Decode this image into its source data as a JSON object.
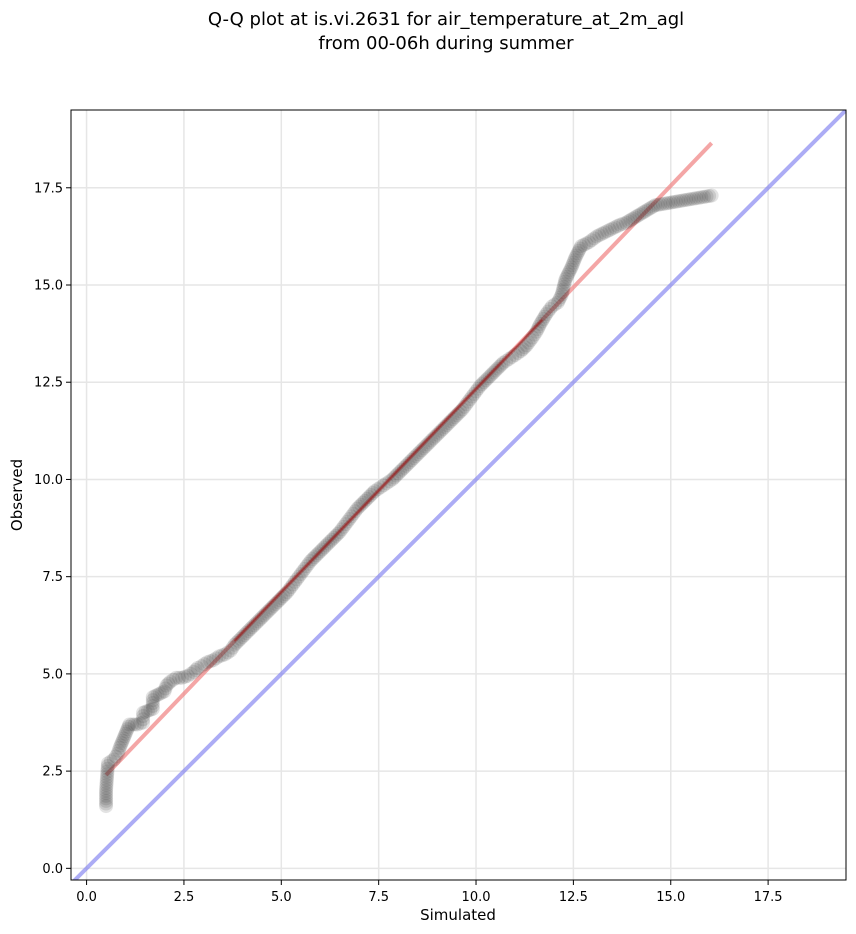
{
  "chart_data": {
    "type": "scatter",
    "title": "Q-Q plot at is.vi.2631 for air_temperature_at_2m_agl",
    "subtitle": "from 00-06h during summer",
    "xlabel": "Simulated",
    "ylabel": "Observed",
    "xlim": [
      -0.4,
      19.5
    ],
    "ylim": [
      -0.3,
      19.5
    ],
    "xticks": [
      "0.0",
      "2.5",
      "5.0",
      "7.5",
      "10.0",
      "12.5",
      "15.0",
      "17.5"
    ],
    "yticks": [
      "0.0",
      "2.5",
      "5.0",
      "7.5",
      "10.0",
      "12.5",
      "15.0",
      "17.5"
    ],
    "grid": true,
    "colors": {
      "points": "#2a2a2a",
      "fit_line": "#f08080",
      "identity_line": "#8080f0",
      "fit_core": "#a00000"
    },
    "series": [
      {
        "kind": "identity-line",
        "x": [
          -0.4,
          19.5
        ],
        "y": [
          -0.4,
          19.5
        ]
      },
      {
        "kind": "fit-line",
        "x": [
          0.5,
          16.05
        ],
        "y": [
          2.4,
          18.65
        ]
      },
      {
        "kind": "quantile-points",
        "points": [
          [
            0.5,
            1.6
          ],
          [
            0.5,
            2.0
          ],
          [
            0.55,
            2.7
          ],
          [
            0.7,
            2.8
          ],
          [
            0.8,
            2.95
          ],
          [
            0.85,
            3.1
          ],
          [
            1.1,
            3.7
          ],
          [
            1.3,
            3.7
          ],
          [
            1.45,
            3.75
          ],
          [
            1.45,
            4.0
          ],
          [
            1.7,
            4.1
          ],
          [
            1.7,
            4.4
          ],
          [
            2.0,
            4.55
          ],
          [
            2.05,
            4.7
          ],
          [
            2.15,
            4.8
          ],
          [
            2.3,
            4.9
          ],
          [
            2.45,
            4.9
          ],
          [
            2.6,
            4.95
          ],
          [
            2.75,
            5.05
          ],
          [
            2.85,
            5.15
          ],
          [
            2.95,
            5.2
          ],
          [
            3.1,
            5.3
          ],
          [
            3.25,
            5.35
          ],
          [
            3.4,
            5.45
          ],
          [
            3.55,
            5.5
          ],
          [
            3.7,
            5.6
          ],
          [
            3.8,
            5.75
          ],
          [
            3.95,
            5.9
          ],
          [
            4.1,
            6.05
          ],
          [
            4.25,
            6.2
          ],
          [
            4.4,
            6.35
          ],
          [
            4.55,
            6.5
          ],
          [
            4.7,
            6.65
          ],
          [
            4.85,
            6.8
          ],
          [
            5.0,
            6.95
          ],
          [
            5.15,
            7.1
          ],
          [
            5.3,
            7.3
          ],
          [
            5.45,
            7.5
          ],
          [
            5.6,
            7.7
          ],
          [
            5.75,
            7.9
          ],
          [
            5.9,
            8.05
          ],
          [
            6.05,
            8.2
          ],
          [
            6.2,
            8.35
          ],
          [
            6.35,
            8.5
          ],
          [
            6.5,
            8.65
          ],
          [
            6.65,
            8.85
          ],
          [
            6.8,
            9.05
          ],
          [
            6.95,
            9.25
          ],
          [
            7.1,
            9.4
          ],
          [
            7.25,
            9.55
          ],
          [
            7.4,
            9.7
          ],
          [
            7.55,
            9.8
          ],
          [
            7.7,
            9.9
          ],
          [
            7.85,
            10.0
          ],
          [
            8.0,
            10.15
          ],
          [
            8.15,
            10.3
          ],
          [
            8.3,
            10.45
          ],
          [
            8.45,
            10.6
          ],
          [
            8.6,
            10.75
          ],
          [
            8.75,
            10.9
          ],
          [
            8.9,
            11.05
          ],
          [
            9.05,
            11.2
          ],
          [
            9.2,
            11.35
          ],
          [
            9.35,
            11.5
          ],
          [
            9.5,
            11.65
          ],
          [
            9.65,
            11.8
          ],
          [
            9.8,
            12.0
          ],
          [
            9.95,
            12.2
          ],
          [
            10.1,
            12.4
          ],
          [
            10.25,
            12.55
          ],
          [
            10.4,
            12.7
          ],
          [
            10.55,
            12.85
          ],
          [
            10.7,
            13.0
          ],
          [
            10.85,
            13.1
          ],
          [
            11.0,
            13.2
          ],
          [
            11.15,
            13.3
          ],
          [
            11.3,
            13.45
          ],
          [
            11.45,
            13.65
          ],
          [
            11.55,
            13.8
          ],
          [
            11.65,
            14.0
          ],
          [
            11.8,
            14.25
          ],
          [
            11.95,
            14.45
          ],
          [
            12.1,
            14.55
          ],
          [
            12.2,
            14.75
          ],
          [
            12.3,
            15.15
          ],
          [
            12.45,
            15.45
          ],
          [
            12.55,
            15.7
          ],
          [
            12.7,
            16.0
          ],
          [
            12.9,
            16.1
          ],
          [
            13.1,
            16.25
          ],
          [
            13.3,
            16.35
          ],
          [
            13.5,
            16.45
          ],
          [
            13.7,
            16.55
          ],
          [
            13.85,
            16.6
          ],
          [
            14.6,
            17.05
          ],
          [
            16.05,
            17.3
          ]
        ]
      }
    ]
  }
}
